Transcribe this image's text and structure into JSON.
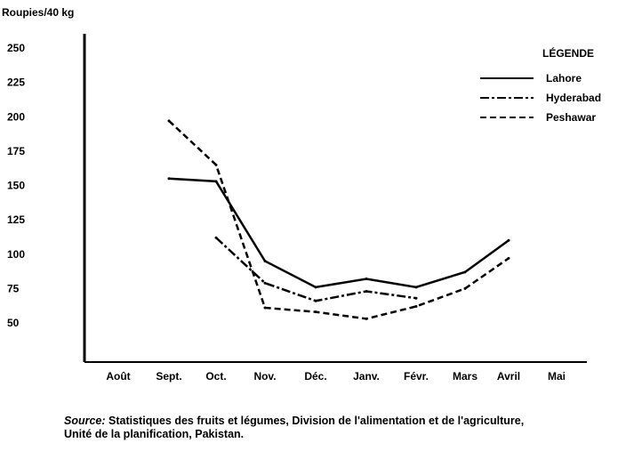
{
  "chart_data": {
    "type": "line",
    "ylabel": "Roupies/40 kg",
    "xlabel": "",
    "categories": [
      "Août",
      "Sept.",
      "Oct.",
      "Nov.",
      "Déc.",
      "Janv.",
      "Févr.",
      "Mars",
      "Avril",
      "Mai"
    ],
    "yticks": [
      250,
      225,
      200,
      175,
      150,
      125,
      100,
      75,
      50
    ],
    "ylim": [
      0,
      260
    ],
    "grid": false,
    "legend_title": "LÉGENDE",
    "legend_placement": "top-right",
    "series": [
      {
        "name": "Lahore",
        "style": "solid",
        "values": [
          null,
          155,
          153,
          95,
          76,
          82,
          76,
          87,
          110,
          null
        ]
      },
      {
        "name": "Hyderabad",
        "style": "dash-dot",
        "values": [
          null,
          null,
          112,
          79,
          66,
          73,
          68,
          null,
          null,
          null
        ]
      },
      {
        "name": "Peshawar",
        "style": "dashed",
        "values": [
          null,
          197,
          165,
          61,
          58,
          53,
          62,
          75,
          97,
          null
        ]
      }
    ]
  },
  "source": {
    "label": "Source:",
    "text": " Statistiques des fruits et légumes, Division de l'alimentation et de l'agriculture,",
    "line2": "Unité de la planification, Pakistan."
  }
}
